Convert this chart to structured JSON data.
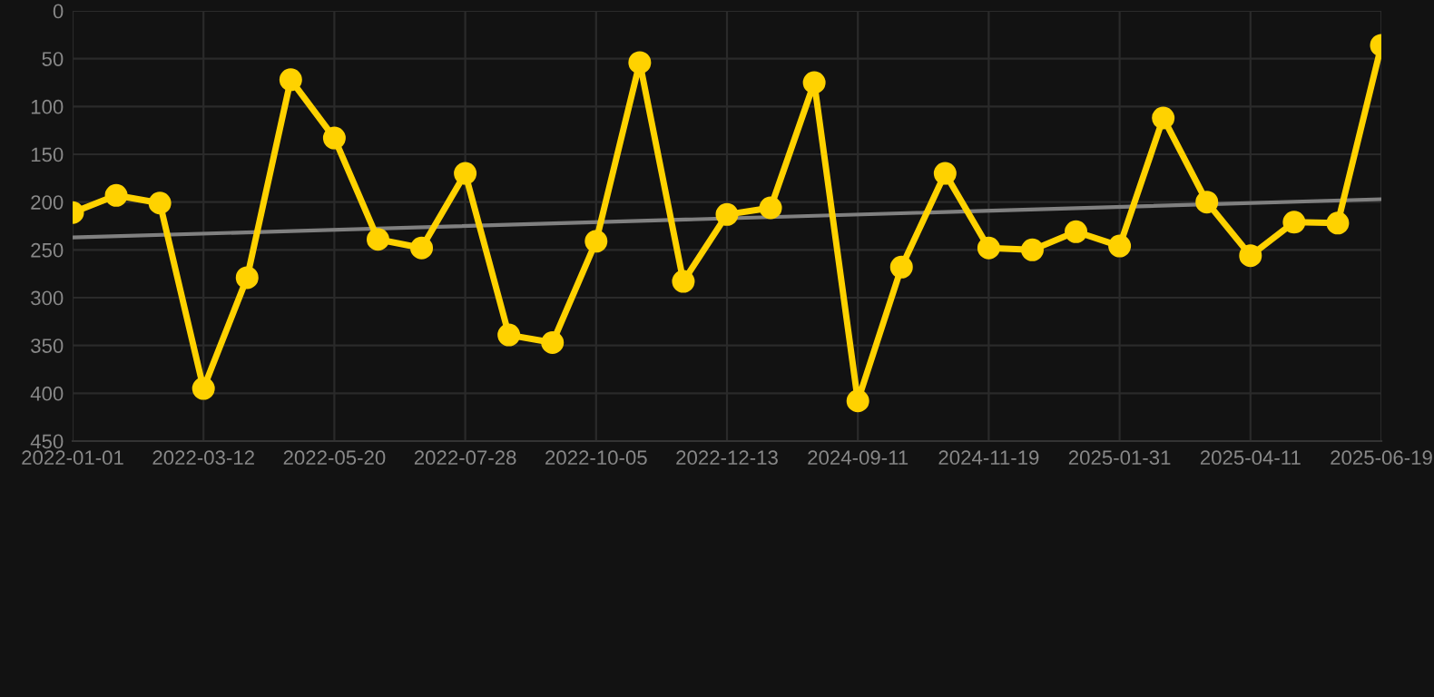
{
  "chart_data": {
    "type": "line",
    "categories": [
      "2022-01-01",
      null,
      null,
      "2022-03-12",
      null,
      null,
      "2022-05-20",
      null,
      null,
      "2022-07-28",
      null,
      null,
      "2022-10-05",
      null,
      null,
      "2022-12-13",
      null,
      null,
      "2024-09-11",
      null,
      null,
      "2024-11-19",
      null,
      null,
      "2025-01-31",
      null,
      null,
      "2025-04-11",
      null,
      null,
      "2025-06-19"
    ],
    "series": [
      {
        "color": "#ffd200",
        "marker": "circle",
        "values": [
          211,
          193,
          201,
          395,
          279,
          72,
          133,
          239,
          248,
          170,
          339,
          347,
          241,
          54,
          283,
          213,
          206,
          75,
          408,
          268,
          170,
          248,
          250,
          231,
          246,
          112,
          200,
          256,
          221,
          222,
          36
        ]
      },
      {
        "type": "line",
        "color": "#808080",
        "marker": "none",
        "values": [
          237,
          null,
          null,
          null,
          null,
          null,
          null,
          null,
          null,
          null,
          null,
          null,
          null,
          null,
          null,
          null,
          null,
          null,
          null,
          null,
          null,
          null,
          null,
          null,
          null,
          null,
          null,
          null,
          null,
          null,
          197
        ]
      }
    ],
    "ylim": [
      450,
      0
    ],
    "yticks": [
      0,
      50,
      100,
      150,
      200,
      250,
      300,
      350,
      400,
      450
    ],
    "grid": true
  }
}
